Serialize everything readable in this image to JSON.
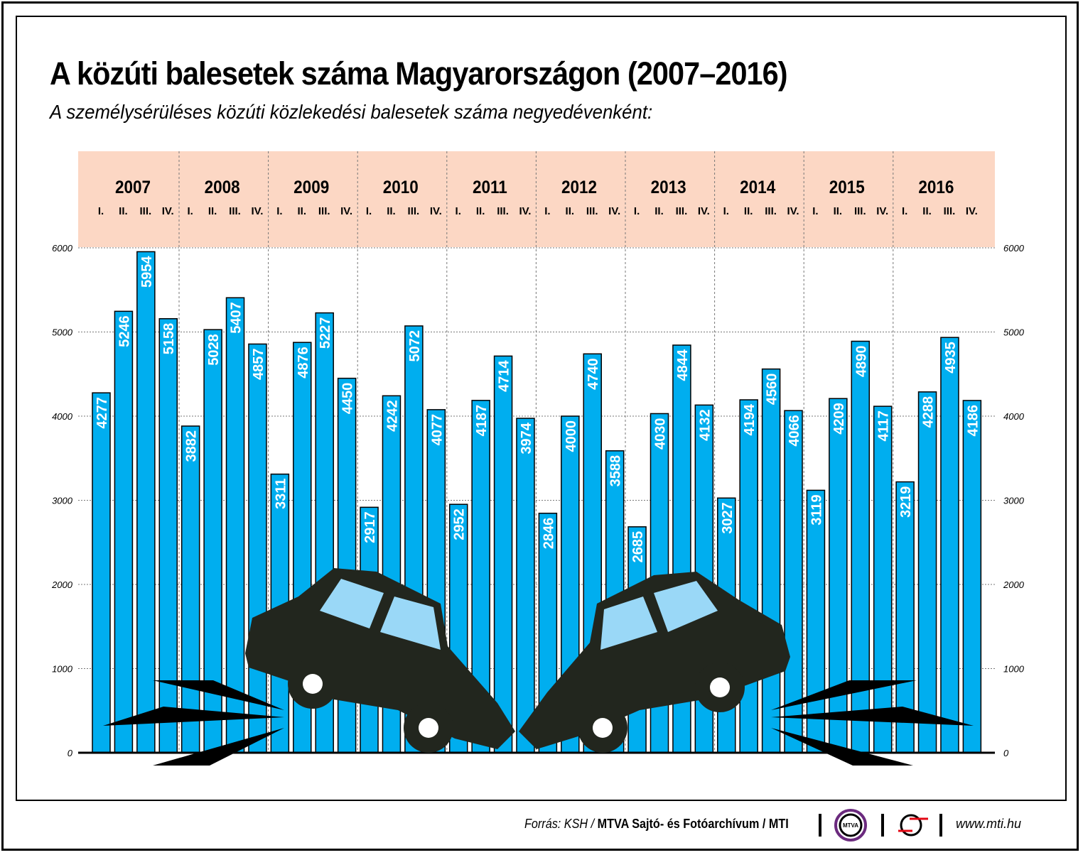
{
  "chart_data": {
    "type": "bar",
    "title": "A közúti balesetek száma Magyarországon (2007–2016)",
    "subtitle": "A személysérüléses közúti közlekedési balesetek száma negyedévenként:",
    "years": [
      "2007",
      "2008",
      "2009",
      "2010",
      "2011",
      "2012",
      "2013",
      "2014",
      "2015",
      "2016"
    ],
    "quarters": [
      "I.",
      "II.",
      "III.",
      "IV."
    ],
    "values": [
      [
        4277,
        5246,
        5954,
        5158
      ],
      [
        3882,
        5028,
        5407,
        4857
      ],
      [
        3311,
        4876,
        5227,
        4450
      ],
      [
        2917,
        4242,
        5072,
        4077
      ],
      [
        2952,
        4187,
        4714,
        3974
      ],
      [
        2846,
        4000,
        4740,
        3588
      ],
      [
        2685,
        4030,
        4844,
        4132
      ],
      [
        3027,
        4194,
        4560,
        4066
      ],
      [
        3119,
        4209,
        4890,
        4117
      ],
      [
        3219,
        4288,
        4935,
        4186
      ]
    ],
    "ylim": [
      0,
      6000
    ],
    "yticks": [
      0,
      1000,
      2000,
      3000,
      4000,
      5000,
      6000
    ],
    "grid": true,
    "colors": {
      "bar": "#00aeef",
      "header_band": "#fcd7c4",
      "car": "#22261e",
      "glass": "#9ad8f7"
    }
  },
  "footer": {
    "source_prefix": "Forrás: KSH / ",
    "source_bold": "MTVA Sajtó- és Fotóarchívum / MTI",
    "logo_text": "MTVA",
    "url": "www.mti.hu"
  }
}
